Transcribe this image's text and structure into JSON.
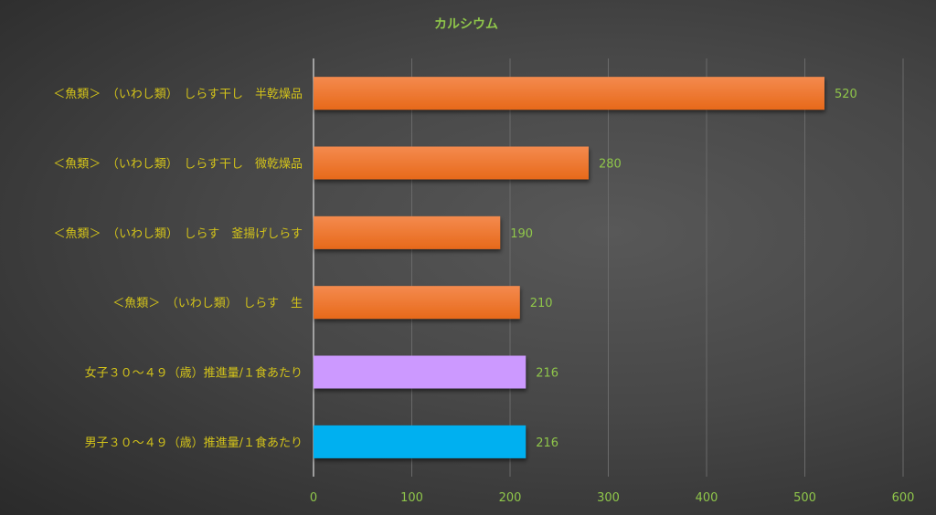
{
  "chart_data": {
    "type": "bar",
    "orientation": "horizontal",
    "title": "カルシウム",
    "categories": [
      "＜魚類＞　（いわし類）　しらす干し　半乾燥品",
      "＜魚類＞　（いわし類）　しらす干し　微乾燥品",
      "＜魚類＞　（いわし類）　しらす　釜揚げしらす",
      "＜魚類＞　（いわし類）　しらす　生",
      "女子３０～４９（歳）推進量/１食あたり",
      "男子３０～４９（歳）推進量/１食あたり"
    ],
    "values": [
      520,
      280,
      190,
      210,
      216,
      216
    ],
    "data_labels": [
      "520",
      "280",
      "190",
      "210",
      "216",
      "216"
    ],
    "colors": [
      "#ee7424",
      "#ee7424",
      "#ee7424",
      "#ee7424",
      "#cc99ff",
      "#00b0f0"
    ],
    "xlim": [
      0,
      600
    ],
    "xticks": [
      0,
      100,
      200,
      300,
      400,
      500,
      600
    ],
    "xtick_labels": [
      "0",
      "100",
      "200",
      "300",
      "400",
      "500",
      "600"
    ],
    "grid": true,
    "legend": "none"
  }
}
